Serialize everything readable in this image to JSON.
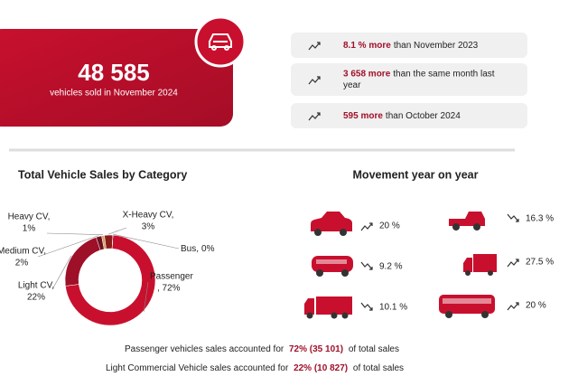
{
  "header": {
    "value": "48 585",
    "caption": "vehicles sold in November 2024"
  },
  "highlights": [
    {
      "emphasis": "8.1 % more",
      "text": [
        "than November 2023"
      ]
    },
    {
      "emphasis": "3 658 more",
      "text": [
        "than the same month last",
        "year"
      ]
    },
    {
      "emphasis": "595 more",
      "text": [
        "than October 2024"
      ]
    }
  ],
  "chart_data": {
    "type": "donut",
    "title": "Total Vehicle Sales by Category",
    "categories": [
      "Passenger",
      "Light CV,",
      "Medium CV,",
      "Heavy CV,",
      "X-Heavy CV,",
      "Bus,"
    ],
    "values": [
      72,
      22,
      2,
      1,
      3,
      0
    ],
    "value_labels": [
      ", 72%",
      "22%",
      "2%",
      "1%",
      "3%",
      "0%"
    ],
    "colors": [
      "#c8102e",
      "#9e1028",
      "#6e1020",
      "#d9a066",
      "#8b1a1a",
      "#e04050"
    ]
  },
  "movement": {
    "title": "Movement year on year",
    "items": [
      "20 %",
      "16.3 %",
      "9.2 %",
      "27.5 %",
      "10.1 %",
      "20 %"
    ]
  },
  "footer": [
    {
      "before": "Passenger vehicles sales accounted for",
      "emphasis": "72%  (35 101)",
      "after": "of total sales"
    },
    {
      "before": "Light Commercial Vehicle sales accounted for",
      "emphasis": "22% (10 827)",
      "after": "of total sales"
    }
  ]
}
